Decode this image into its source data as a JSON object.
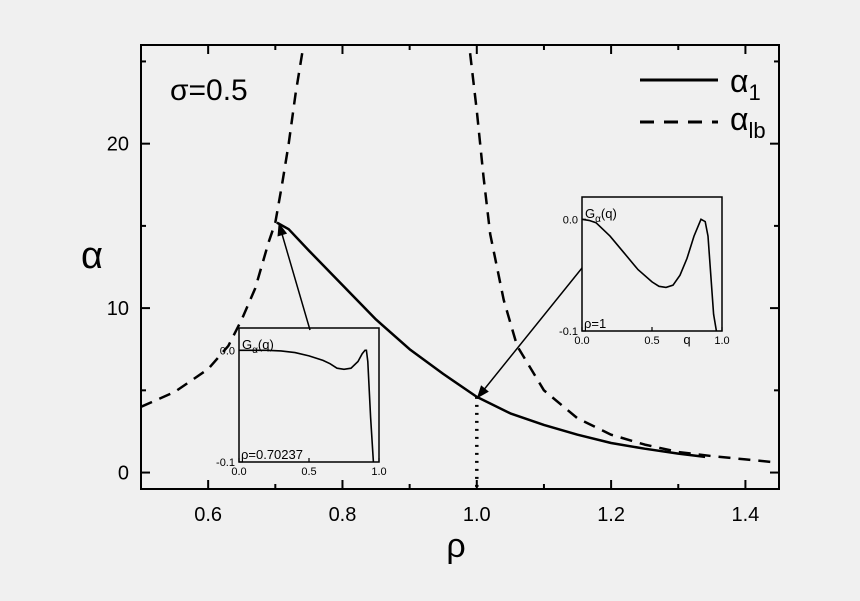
{
  "chart_data": {
    "type": "line",
    "xlabel": "ρ",
    "ylabel": "α",
    "xlim": [
      0.5,
      1.45
    ],
    "ylim": [
      -1,
      26
    ],
    "xticks": [
      "0.6",
      "0.8",
      "1.0",
      "1.2",
      "1.4"
    ],
    "yticks": [
      "0",
      "10",
      "20"
    ],
    "annotation": "σ=0.5",
    "legend": {
      "placement": "top-right",
      "entries": [
        {
          "symbol": "α",
          "sub": "1",
          "style": "solid"
        },
        {
          "symbol": "α",
          "sub": "lb",
          "style": "dashed"
        }
      ]
    },
    "series": [
      {
        "style": "solid",
        "x": [
          0.70237,
          0.72,
          0.75,
          0.8,
          0.85,
          0.9,
          0.95,
          1.0,
          1.05,
          1.1,
          1.15,
          1.2,
          1.25,
          1.3,
          1.34
        ],
        "y": [
          15.2,
          14.8,
          13.5,
          11.4,
          9.3,
          7.5,
          6.0,
          4.6,
          3.6,
          2.9,
          2.3,
          1.8,
          1.45,
          1.15,
          0.95
        ]
      },
      {
        "style": "dashed",
        "x": [
          0.5,
          0.55,
          0.6,
          0.63,
          0.65,
          0.67,
          0.69,
          0.7,
          0.71,
          0.72,
          0.73,
          0.74
        ],
        "y": [
          4.0,
          4.9,
          6.3,
          7.7,
          9.3,
          11.2,
          14.0,
          15.2,
          17.5,
          20.0,
          23.0,
          25.5
        ]
      },
      {
        "style": "dashed",
        "x": [
          0.99,
          1.0,
          1.01,
          1.02,
          1.04,
          1.06,
          1.1,
          1.15,
          1.2,
          1.25,
          1.3,
          1.35,
          1.4,
          1.45
        ],
        "y": [
          25.5,
          22.0,
          18.0,
          14.5,
          10.5,
          7.7,
          5.0,
          3.3,
          2.3,
          1.7,
          1.25,
          1.0,
          0.8,
          0.6
        ]
      },
      {
        "style": "dotted",
        "x": [
          1.0,
          1.0
        ],
        "y": [
          4.6,
          -1
        ]
      }
    ],
    "insets": [
      {
        "ylabel_main": "G",
        "ylabel_sub": "α",
        "ylabel_suffix": "(q)",
        "xtick_labels": [
          "0.0",
          "0.5",
          "1.0"
        ],
        "ytick_labels": [
          "0.0",
          "-0.1"
        ],
        "annotation": "ρ=0.70237",
        "xlabel": "",
        "xlim": [
          0,
          1.0
        ],
        "ylim": [
          -0.1,
          0.02
        ],
        "x": [
          0.0,
          0.1,
          0.2,
          0.3,
          0.4,
          0.5,
          0.6,
          0.65,
          0.7,
          0.75,
          0.8,
          0.85,
          0.88,
          0.9,
          0.91,
          0.92,
          0.94,
          0.96
        ],
        "y": [
          0.0,
          0.0,
          0.0,
          -0.0005,
          -0.002,
          -0.005,
          -0.009,
          -0.012,
          -0.016,
          -0.017,
          -0.016,
          -0.01,
          -0.003,
          0.0,
          0.0,
          -0.01,
          -0.06,
          -0.1
        ]
      },
      {
        "ylabel_main": "G",
        "ylabel_sub": "α",
        "ylabel_suffix": "(q)",
        "xtick_labels": [
          "0.0",
          "0.5",
          "1.0"
        ],
        "ytick_labels": [
          "0.0",
          "-0.1"
        ],
        "annotation": "ρ=1",
        "xlabel": "q",
        "xlim": [
          0,
          1.0
        ],
        "ylim": [
          -0.1,
          0.02
        ],
        "x": [
          0.0,
          0.05,
          0.1,
          0.2,
          0.3,
          0.4,
          0.5,
          0.55,
          0.6,
          0.65,
          0.7,
          0.75,
          0.8,
          0.85,
          0.88,
          0.9,
          0.92,
          0.94,
          0.96
        ],
        "y": [
          0.0,
          -0.001,
          -0.003,
          -0.015,
          -0.03,
          -0.045,
          -0.056,
          -0.06,
          -0.061,
          -0.059,
          -0.05,
          -0.035,
          -0.015,
          0.0,
          -0.002,
          -0.015,
          -0.05,
          -0.085,
          -0.1
        ]
      }
    ],
    "arrows": [
      {
        "from_inset": 0,
        "to": [
          0.705,
          15.2
        ]
      },
      {
        "from_inset": 1,
        "to": [
          1.0,
          4.5
        ]
      }
    ]
  }
}
